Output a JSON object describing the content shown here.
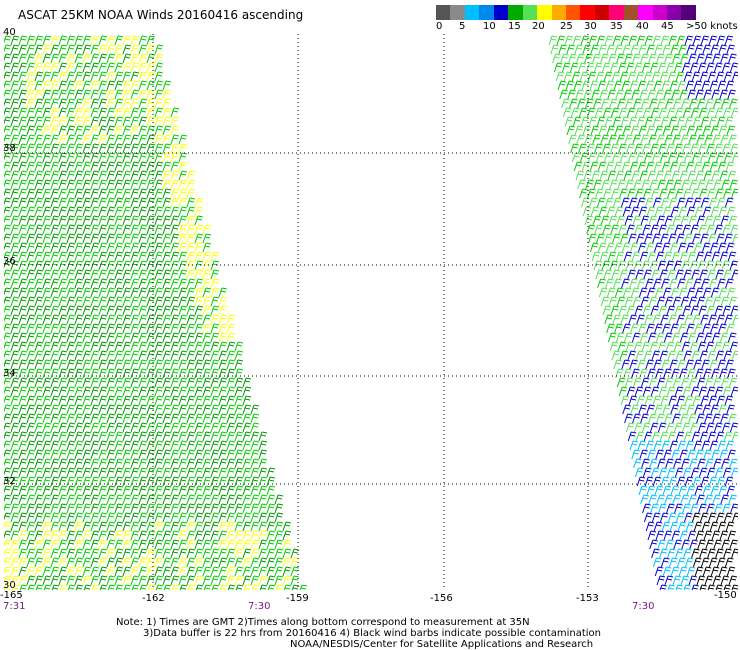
{
  "title": "ASCAT 25KM NOAA Winds 20160416 ascending",
  "speed_scale": {
    "colors": [
      "#555555",
      "#8a8a8a",
      "#00bfff",
      "#0088ee",
      "#0000cc",
      "#00aa00",
      "#55e055",
      "#ffff00",
      "#ffaa00",
      "#ff5500",
      "#ff0000",
      "#cc0000",
      "#ff0077",
      "#a0522d",
      "#ff00ff",
      "#cc00cc",
      "#8800aa",
      "#550077"
    ],
    "labels": [
      "0",
      "5",
      "10",
      "15",
      "20",
      "25",
      "30",
      "35",
      "40",
      "45",
      ">50 knots"
    ]
  },
  "axes": {
    "lon_labels": [
      "-165",
      "-162",
      "-159",
      "-156",
      "-153",
      "-150"
    ],
    "lat_labels": [
      "40",
      "38",
      "36",
      "34",
      "32",
      "30"
    ]
  },
  "times": [
    "7:31",
    "7:30",
    "7:30"
  ],
  "notes": [
    "Note: 1) Times are GMT 2)Times along bottom correspond to measurement at 35N",
    "3)Data buffer is 22 hrs from 20160416 4) Black wind barbs indicate possible contamination",
    "NOAA/NESDIS/Center for Satellite Applications and Research"
  ],
  "legend_colors": {
    "yellow": "#ffff00",
    "dark_green": "#009900",
    "green": "#00cc00",
    "light_green": "#55e055",
    "blue": "#0000cc",
    "cyan": "#00bfff",
    "black": "#000000"
  }
}
